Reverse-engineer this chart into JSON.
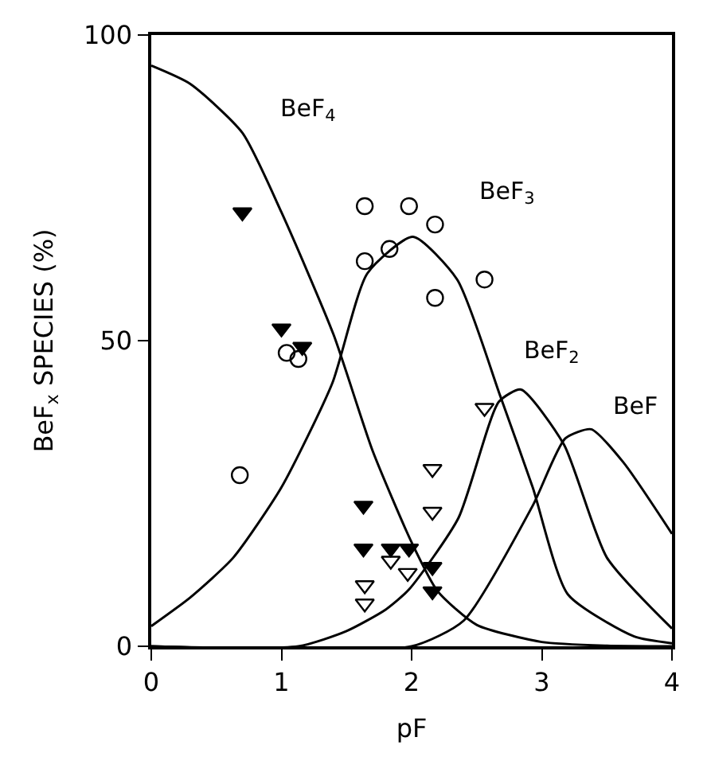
{
  "chart_data": {
    "type": "line",
    "xlabel": "pF",
    "ylabel": "BeF$_{x}$ SPECIES (%)",
    "xlim": [
      0,
      4
    ],
    "ylim": [
      0,
      100
    ],
    "xticks": [
      0,
      1,
      2,
      3,
      4
    ],
    "yticks": [
      0,
      50,
      100
    ],
    "legend": false,
    "series": [
      {
        "name": "BeF$_{4}$",
        "color": "#000000",
        "marker": "none",
        "line_style": "solid",
        "x": [
          0,
          0.3,
          0.7,
          1.0,
          1.4,
          1.7,
          2.0,
          2.2,
          2.5,
          3.0,
          3.5,
          4
        ],
        "values": [
          95,
          92,
          84,
          71,
          51,
          32,
          17,
          9,
          3.5,
          0.7,
          0.1,
          0
        ]
      },
      {
        "name": "BeF$_{3}$",
        "color": "#000000",
        "marker": "none",
        "line_style": "solid",
        "x": [
          0,
          0.3,
          0.63,
          1.0,
          1.39,
          1.66,
          2.01,
          2.35,
          2.68,
          2.93,
          3.2,
          3.71,
          4
        ],
        "values": [
          3.3,
          8,
          14.5,
          26,
          43,
          61,
          67,
          60,
          41,
          26,
          8.5,
          1.6,
          0.5
        ]
      },
      {
        "name": "BeF$_{2}$",
        "color": "#000000",
        "marker": "none",
        "line_style": "solid",
        "x": [
          0,
          1.13,
          1.5,
          1.8,
          1.98,
          2.36,
          2.67,
          2.84,
          3.17,
          3.5,
          4
        ],
        "values": [
          0,
          0,
          2.5,
          6,
          9.3,
          21,
          40,
          42,
          33,
          14.5,
          2.9
        ]
      },
      {
        "name": "BeF",
        "color": "#000000",
        "marker": "none",
        "line_style": "solid",
        "x": [
          0,
          2.0,
          2.4,
          2.93,
          3.18,
          3.38,
          3.63,
          4
        ],
        "values": [
          0,
          0,
          4.2,
          23,
          34,
          35.5,
          30,
          18.4
        ]
      },
      {
        "type": "scatter",
        "color": "#000000",
        "marker": "triangle-down",
        "x": [
          0.7,
          1.0,
          1.16,
          1.63,
          1.63,
          1.84,
          1.98,
          2.16,
          2.16
        ],
        "values": [
          71,
          52,
          49,
          23,
          16,
          16,
          16,
          13,
          9
        ]
      },
      {
        "type": "scatter",
        "color": "#000000",
        "marker": "circle-open",
        "x": [
          1.64,
          1.98,
          2.18,
          1.64,
          1.83,
          2.18,
          2.56,
          1.04,
          1.13,
          0.68
        ],
        "values": [
          72,
          72,
          69,
          63,
          65,
          57,
          60,
          48,
          47,
          28
        ]
      },
      {
        "type": "scatter",
        "color": "#000000",
        "marker": "triangle-down-open",
        "x": [
          2.56,
          2.16,
          2.16,
          1.84,
          1.97,
          1.64,
          1.64
        ],
        "values": [
          39,
          29,
          22,
          14,
          12,
          10,
          7
        ]
      }
    ]
  }
}
